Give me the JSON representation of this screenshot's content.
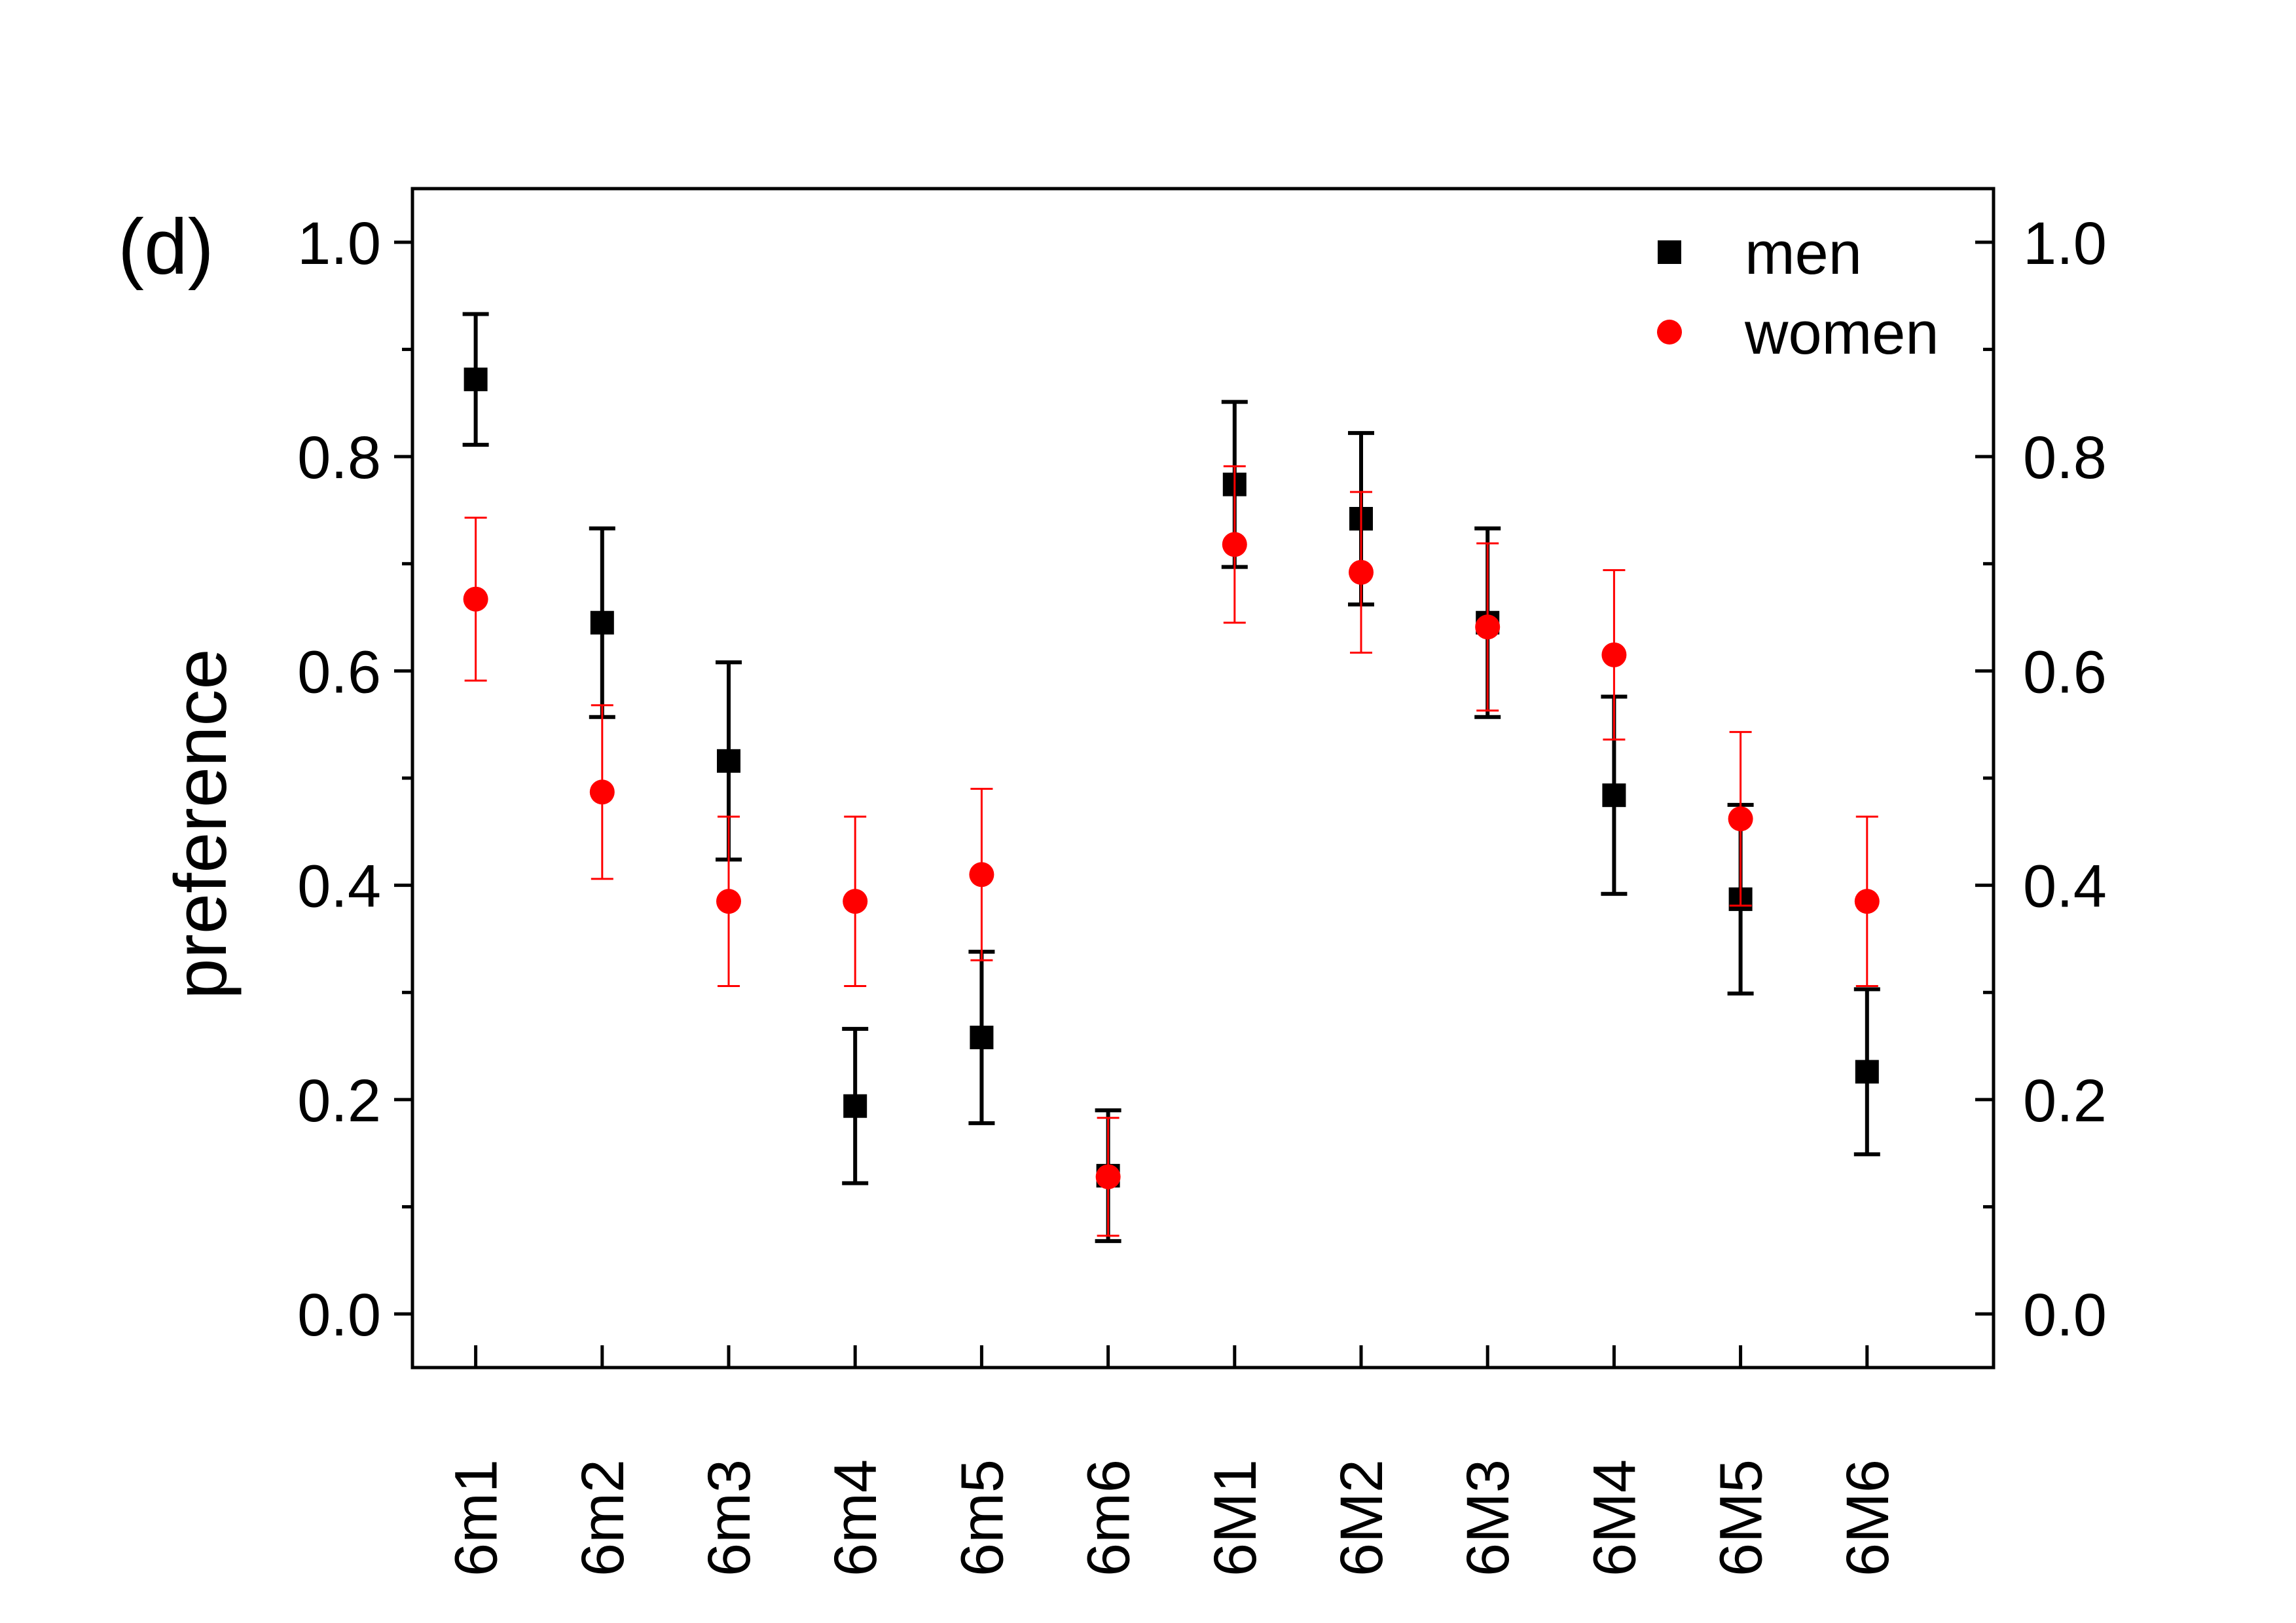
{
  "chart_data": {
    "type": "scatter",
    "panel_label": "(d)",
    "title": "",
    "xlabel": "",
    "ylabel": "preference",
    "categories": [
      "6m1",
      "6m2",
      "6m3",
      "6m4",
      "6m5",
      "6m6",
      "6M1",
      "6M2",
      "6M3",
      "6M4",
      "6M5",
      "6M6"
    ],
    "ylim": [
      -0.05,
      1.05
    ],
    "yticks_major": [
      0.0,
      0.2,
      0.4,
      0.6,
      0.8,
      1.0
    ],
    "ytick_labels": [
      "0.0",
      "0.2",
      "0.4",
      "0.6",
      "0.8",
      "1.0"
    ],
    "yticks_minor": [
      0.1,
      0.3,
      0.5,
      0.7,
      0.9
    ],
    "grid": false,
    "legend_position": "top-right",
    "series": [
      {
        "name": "men",
        "marker": "square",
        "color": "#000000",
        "values": [
          0.872,
          0.645,
          0.516,
          0.194,
          0.258,
          0.129,
          0.774,
          0.742,
          0.645,
          0.484,
          0.387,
          0.226
        ],
        "errors": [
          0.061,
          0.088,
          0.092,
          0.072,
          0.08,
          0.061,
          0.077,
          0.08,
          0.088,
          0.092,
          0.088,
          0.077
        ]
      },
      {
        "name": "women",
        "marker": "circle",
        "color": "#ff0000",
        "values": [
          0.667,
          0.487,
          0.385,
          0.385,
          0.41,
          0.128,
          0.718,
          0.692,
          0.641,
          0.615,
          0.462,
          0.385
        ],
        "errors": [
          0.076,
          0.081,
          0.079,
          0.079,
          0.08,
          0.055,
          0.073,
          0.075,
          0.078,
          0.079,
          0.081,
          0.079
        ]
      }
    ]
  }
}
